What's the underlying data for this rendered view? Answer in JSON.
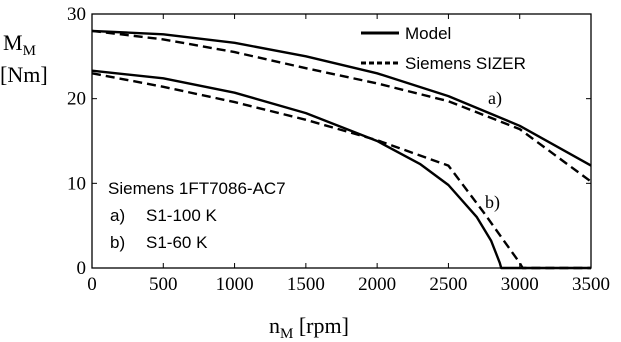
{
  "chart_data": {
    "type": "line",
    "xlabel": "n",
    "xlabel_sub": "M",
    "xlabel_unit": " [rpm]",
    "ylabel_main": "M",
    "ylabel_sub": "M",
    "ylabel_unit": "[Nm]",
    "xlim": [
      0,
      3500
    ],
    "ylim": [
      0,
      30
    ],
    "xticks": [
      0,
      500,
      1000,
      1500,
      2000,
      2500,
      3000,
      3500
    ],
    "yticks": [
      0,
      10,
      20,
      30
    ],
    "grid": false,
    "legend_position": "top-right",
    "legend": [
      {
        "label": "Model",
        "style": "solid"
      },
      {
        "label": "Siemens SIZER",
        "style": "dashed"
      }
    ],
    "annotations": [
      {
        "text": "a)",
        "x": 2800,
        "y": 20.3
      },
      {
        "text": "b)",
        "x": 2780,
        "y": 7.6
      }
    ],
    "info_box": [
      "Siemens 1FT7086-AC7",
      "a)",
      "S1-100 K",
      "b)",
      "S1-60 K"
    ],
    "series": [
      {
        "name": "Model",
        "curve": "a",
        "style": "solid",
        "x": [
          0,
          500,
          1000,
          1500,
          2000,
          2500,
          3000,
          3500
        ],
        "y": [
          28.0,
          27.6,
          26.6,
          25.0,
          23.0,
          20.3,
          16.8,
          12.1
        ]
      },
      {
        "name": "Model",
        "curve": "b",
        "style": "solid",
        "x": [
          0,
          500,
          1000,
          1500,
          2000,
          2300,
          2500,
          2700,
          2800,
          2860,
          2870,
          3500
        ],
        "y": [
          23.3,
          22.4,
          20.7,
          18.3,
          15.0,
          12.3,
          9.8,
          6.0,
          3.2,
          0.6,
          0,
          0
        ]
      },
      {
        "name": "Siemens SIZER",
        "curve": "a",
        "style": "dashed",
        "x": [
          0,
          500,
          1000,
          1500,
          2000,
          2500,
          3000,
          3500
        ],
        "y": [
          28.0,
          27.0,
          25.5,
          23.6,
          21.8,
          19.7,
          16.4,
          10.2
        ]
      },
      {
        "name": "Siemens SIZER",
        "curve": "b",
        "style": "dashed",
        "x": [
          0,
          500,
          1000,
          1500,
          2000,
          2500,
          2750,
          3000,
          3020,
          3500
        ],
        "y": [
          23.0,
          21.4,
          19.6,
          17.5,
          15.1,
          12.1,
          6.5,
          0.6,
          0,
          0
        ]
      }
    ]
  }
}
